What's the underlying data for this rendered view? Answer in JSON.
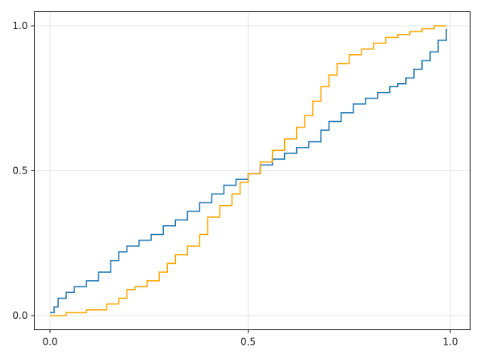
{
  "chart_data": {
    "type": "line",
    "title": "",
    "xlabel": "",
    "ylabel": "",
    "xlim": [
      0.0,
      1.0
    ],
    "ylim": [
      0.0,
      1.0
    ],
    "x_ticks": [
      "0.0",
      "0.5",
      "1.0"
    ],
    "y_ticks": [
      "0.0",
      "0.5",
      "1.0"
    ],
    "grid": true,
    "step": true,
    "series": [
      {
        "color": "#1f77b4",
        "x": [
          0.01,
          0.02,
          0.03,
          0.05,
          0.07,
          0.1,
          0.13,
          0.16,
          0.18,
          0.2,
          0.23,
          0.26,
          0.29,
          0.32,
          0.35,
          0.38,
          0.41,
          0.44,
          0.47,
          0.5,
          0.53,
          0.56,
          0.59,
          0.62,
          0.65,
          0.68,
          0.7,
          0.73,
          0.76,
          0.79,
          0.82,
          0.85,
          0.87,
          0.89,
          0.91,
          0.93,
          0.95,
          0.97,
          0.99
        ],
        "y": [
          0.01,
          0.03,
          0.06,
          0.08,
          0.1,
          0.12,
          0.15,
          0.19,
          0.22,
          0.24,
          0.26,
          0.28,
          0.31,
          0.33,
          0.36,
          0.39,
          0.42,
          0.45,
          0.47,
          0.49,
          0.52,
          0.54,
          0.56,
          0.58,
          0.6,
          0.64,
          0.67,
          0.7,
          0.73,
          0.75,
          0.77,
          0.79,
          0.8,
          0.82,
          0.85,
          0.88,
          0.91,
          0.95,
          0.99
        ]
      },
      {
        "color": "#ffa500",
        "x": [
          0.01,
          0.05,
          0.1,
          0.15,
          0.18,
          0.2,
          0.22,
          0.25,
          0.28,
          0.3,
          0.32,
          0.35,
          0.38,
          0.4,
          0.43,
          0.46,
          0.48,
          0.5,
          0.53,
          0.56,
          0.59,
          0.62,
          0.64,
          0.66,
          0.68,
          0.7,
          0.72,
          0.75,
          0.78,
          0.81,
          0.84,
          0.87,
          0.9,
          0.93,
          0.96,
          0.99
        ],
        "y": [
          0.0,
          0.01,
          0.02,
          0.04,
          0.06,
          0.09,
          0.1,
          0.12,
          0.15,
          0.18,
          0.21,
          0.24,
          0.28,
          0.34,
          0.38,
          0.42,
          0.46,
          0.49,
          0.53,
          0.57,
          0.61,
          0.65,
          0.69,
          0.74,
          0.79,
          0.83,
          0.87,
          0.9,
          0.92,
          0.94,
          0.96,
          0.97,
          0.98,
          0.99,
          1.0,
          1.0
        ]
      }
    ]
  }
}
